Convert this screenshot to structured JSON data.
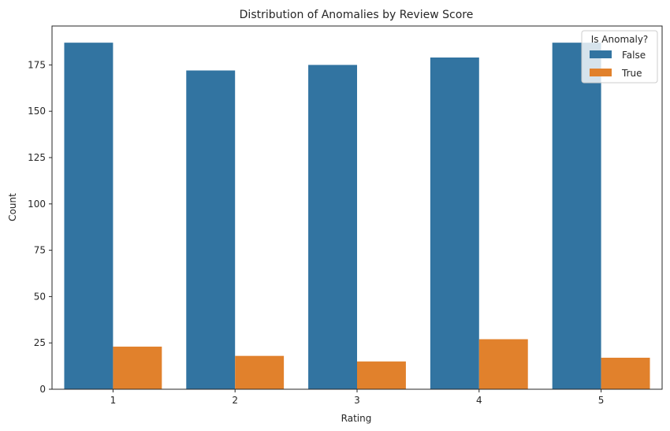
{
  "chart_data": {
    "type": "bar",
    "title": "Distribution of Anomalies by Review Score",
    "xlabel": "Rating",
    "ylabel": "Count",
    "categories": [
      "1",
      "2",
      "3",
      "4",
      "5"
    ],
    "series": [
      {
        "name": "False",
        "color": "#3274a1",
        "values": [
          187,
          172,
          175,
          179,
          187
        ]
      },
      {
        "name": "True",
        "color": "#e1812c",
        "values": [
          23,
          18,
          15,
          27,
          17
        ]
      }
    ],
    "ylim": [
      0,
      196
    ],
    "yticks": [
      0,
      25,
      50,
      75,
      100,
      125,
      150,
      175
    ],
    "grid": false,
    "legend": {
      "title": "Is Anomaly?",
      "placement": "top-right"
    }
  }
}
